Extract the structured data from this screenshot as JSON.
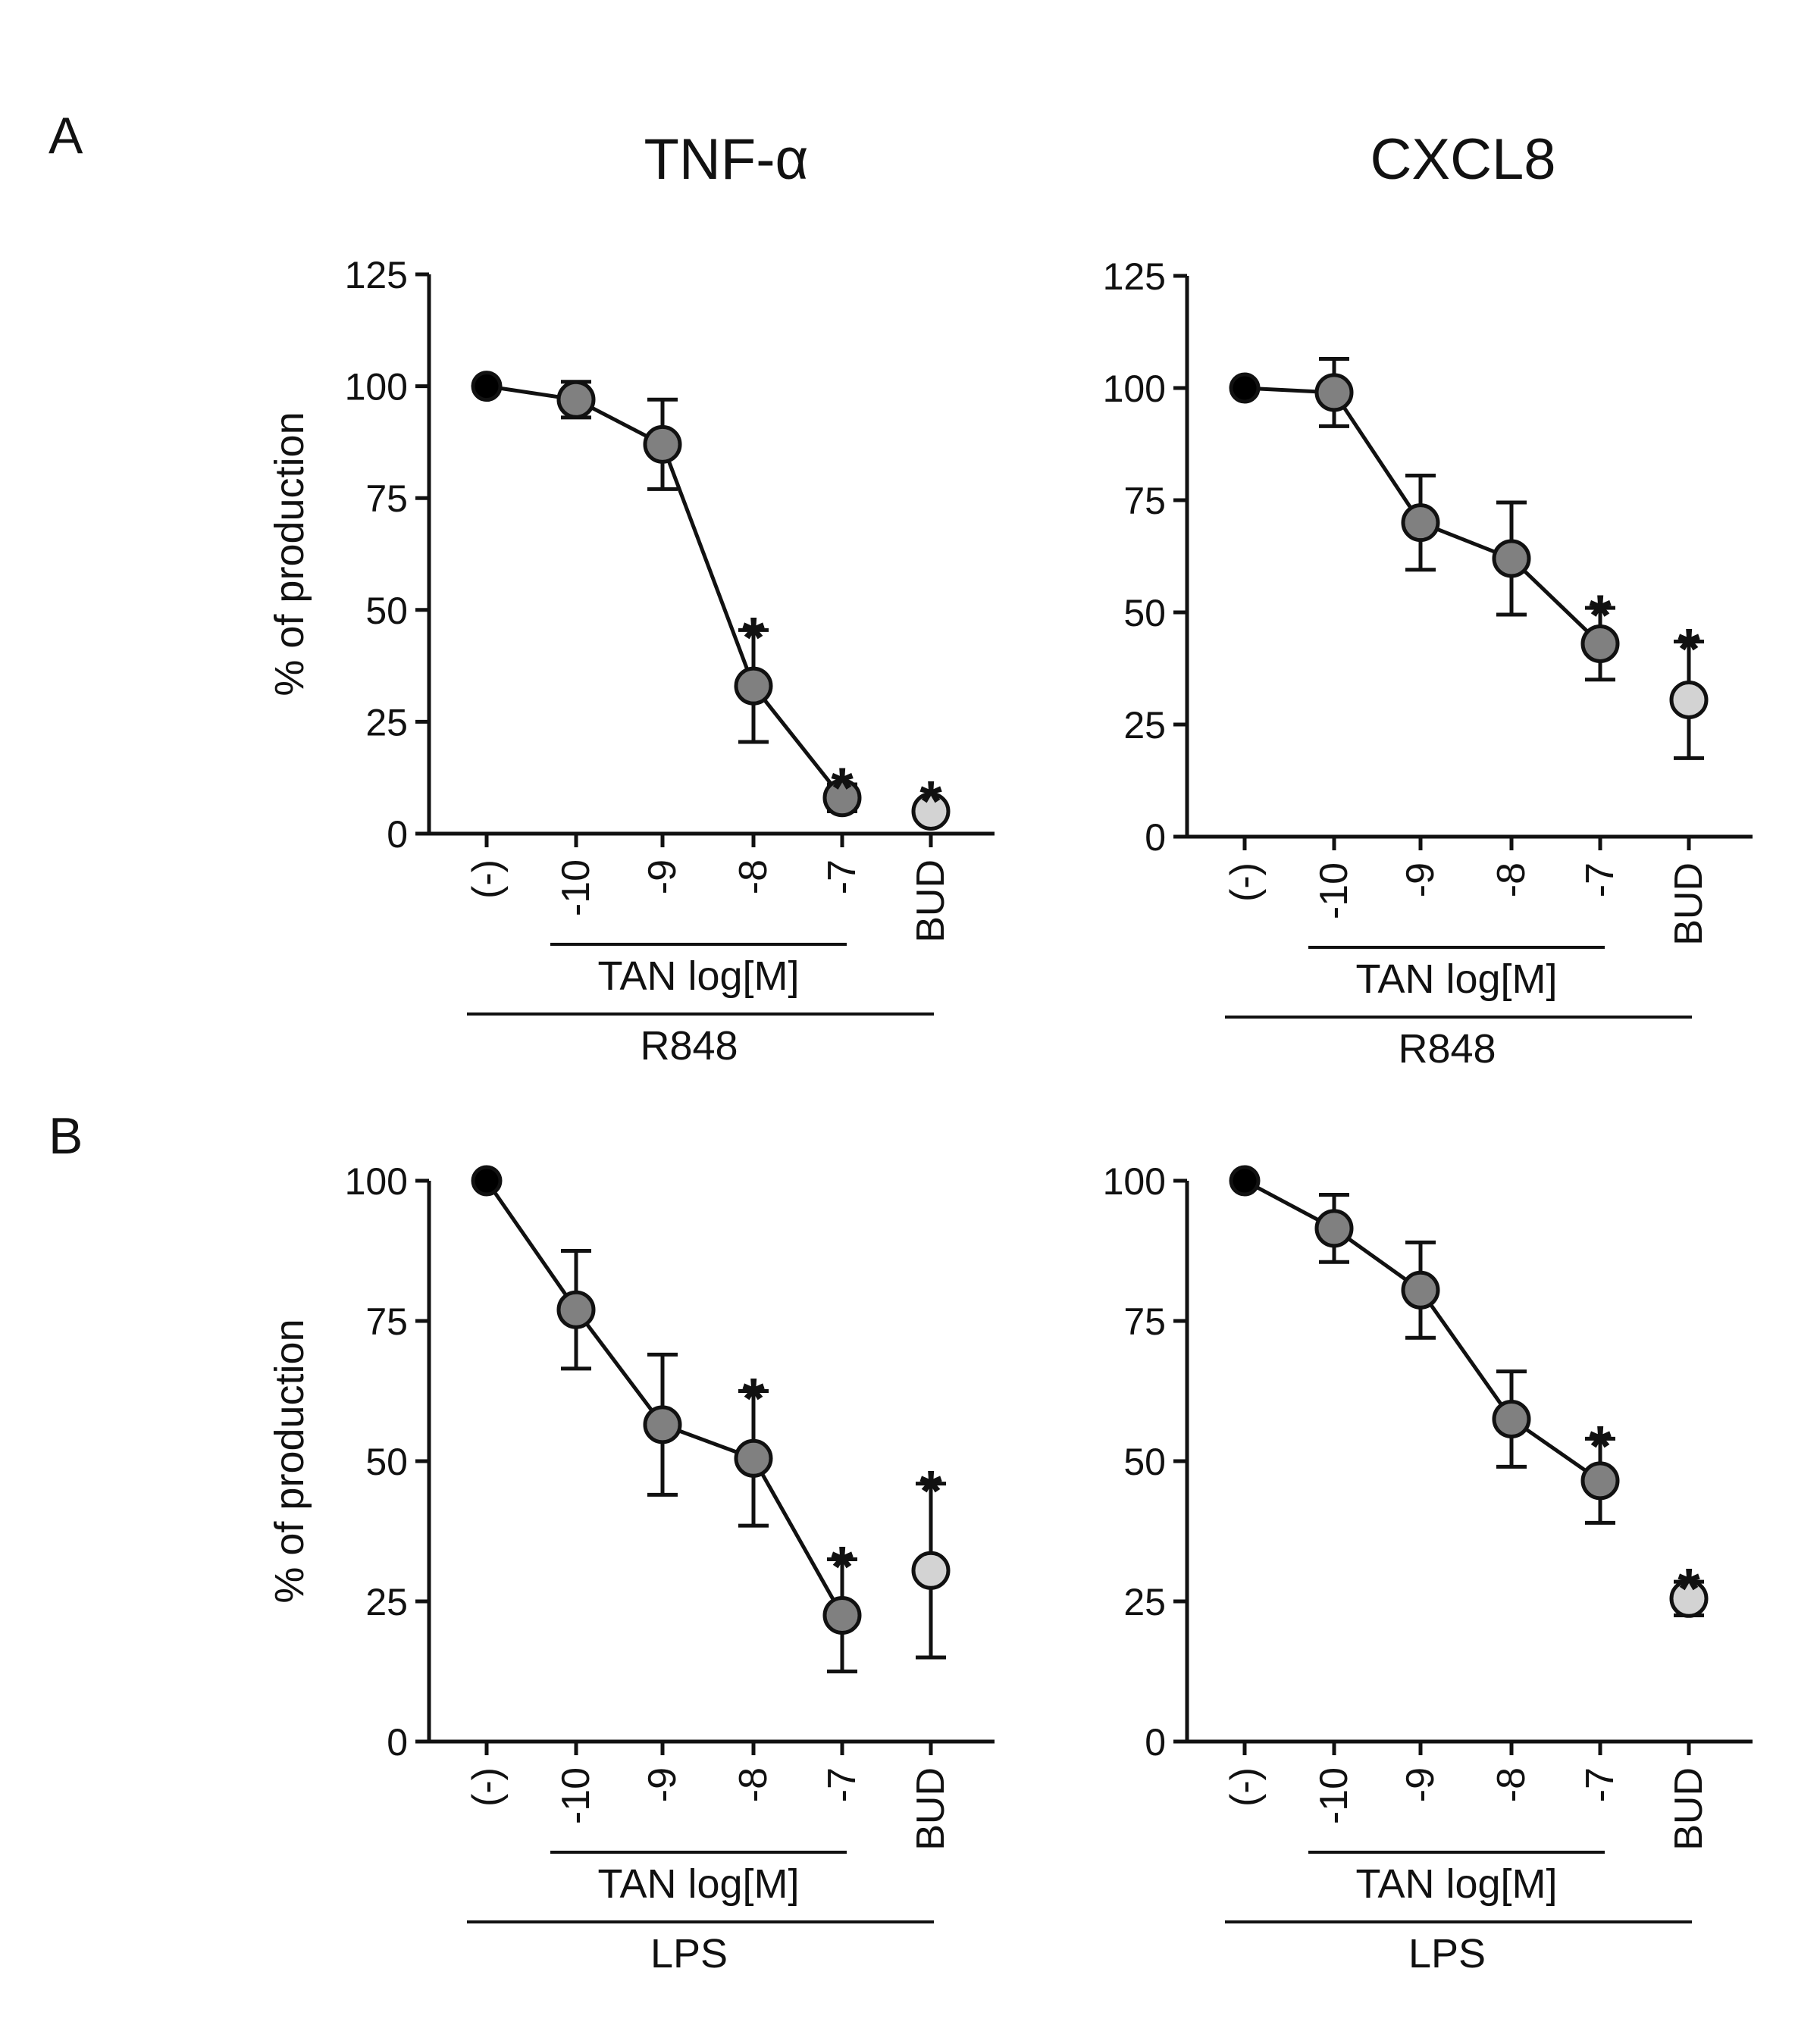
{
  "figure": {
    "column_titles": [
      "TNF-α",
      "CXCL8"
    ],
    "panel_letters": [
      "A",
      "B"
    ]
  },
  "colors": {
    "control": "#000000",
    "tan": "#808080",
    "bud": "#d3d3d3",
    "stroke": "#111111"
  },
  "chart_data": [
    {
      "type": "line",
      "panel": "A",
      "title": "TNF-α",
      "ylabel": "% of production",
      "ylim": [
        0,
        125
      ],
      "yticks": [
        0,
        25,
        50,
        75,
        100,
        125
      ],
      "categories": [
        "(-)",
        "-10",
        "-9",
        "-8",
        "-7",
        "BUD"
      ],
      "bracket_label": "TAN log[M]",
      "stimulus": "R848",
      "values": [
        100,
        97,
        87,
        33,
        8,
        5
      ],
      "errors": [
        0,
        4,
        10,
        12.5,
        3,
        0
      ],
      "significant": [
        false,
        false,
        false,
        true,
        true,
        true
      ],
      "sig_marker": "*",
      "connected": [
        true,
        true,
        true,
        true,
        true,
        false
      ]
    },
    {
      "type": "line",
      "panel": "A",
      "title": "CXCL8",
      "ylabel": "",
      "ylim": [
        0,
        125
      ],
      "yticks": [
        0,
        25,
        50,
        75,
        100,
        125
      ],
      "categories": [
        "(-)",
        "-10",
        "-9",
        "-8",
        "-7",
        "BUD"
      ],
      "bracket_label": "TAN log[M]",
      "stimulus": "R848",
      "values": [
        100,
        99,
        70,
        62,
        43,
        30.5
      ],
      "errors": [
        0,
        7.5,
        10.5,
        12.5,
        8,
        13
      ],
      "significant": [
        false,
        false,
        false,
        false,
        true,
        true
      ],
      "sig_marker": "*",
      "connected": [
        true,
        true,
        true,
        true,
        true,
        false
      ]
    },
    {
      "type": "line",
      "panel": "B",
      "title": "",
      "ylabel": "% of production",
      "ylim": [
        0,
        100
      ],
      "yticks": [
        0,
        25,
        50,
        75,
        100
      ],
      "categories": [
        "(-)",
        "-10",
        "-9",
        "-8",
        "-7",
        "BUD"
      ],
      "bracket_label": "TAN log[M]",
      "stimulus": "LPS",
      "values": [
        100,
        77,
        56.5,
        50.5,
        22.5,
        30.5
      ],
      "errors": [
        0,
        10.5,
        12.5,
        12,
        10,
        15.5
      ],
      "significant": [
        false,
        false,
        false,
        true,
        true,
        true
      ],
      "sig_marker": "*",
      "connected": [
        true,
        true,
        true,
        true,
        true,
        false
      ]
    },
    {
      "type": "line",
      "panel": "B",
      "title": "",
      "ylabel": "",
      "ylim": [
        0,
        100
      ],
      "yticks": [
        0,
        25,
        50,
        75,
        100
      ],
      "categories": [
        "(-)",
        "-10",
        "-9",
        "-8",
        "-7",
        "BUD"
      ],
      "bracket_label": "TAN log[M]",
      "stimulus": "LPS",
      "values": [
        100,
        91.5,
        80.5,
        57.5,
        46.5,
        25.5
      ],
      "errors": [
        0,
        6,
        8.5,
        8.5,
        7.5,
        3
      ],
      "significant": [
        false,
        false,
        false,
        false,
        true,
        true
      ],
      "sig_marker": "*",
      "connected": [
        true,
        true,
        true,
        true,
        true,
        false
      ]
    }
  ]
}
